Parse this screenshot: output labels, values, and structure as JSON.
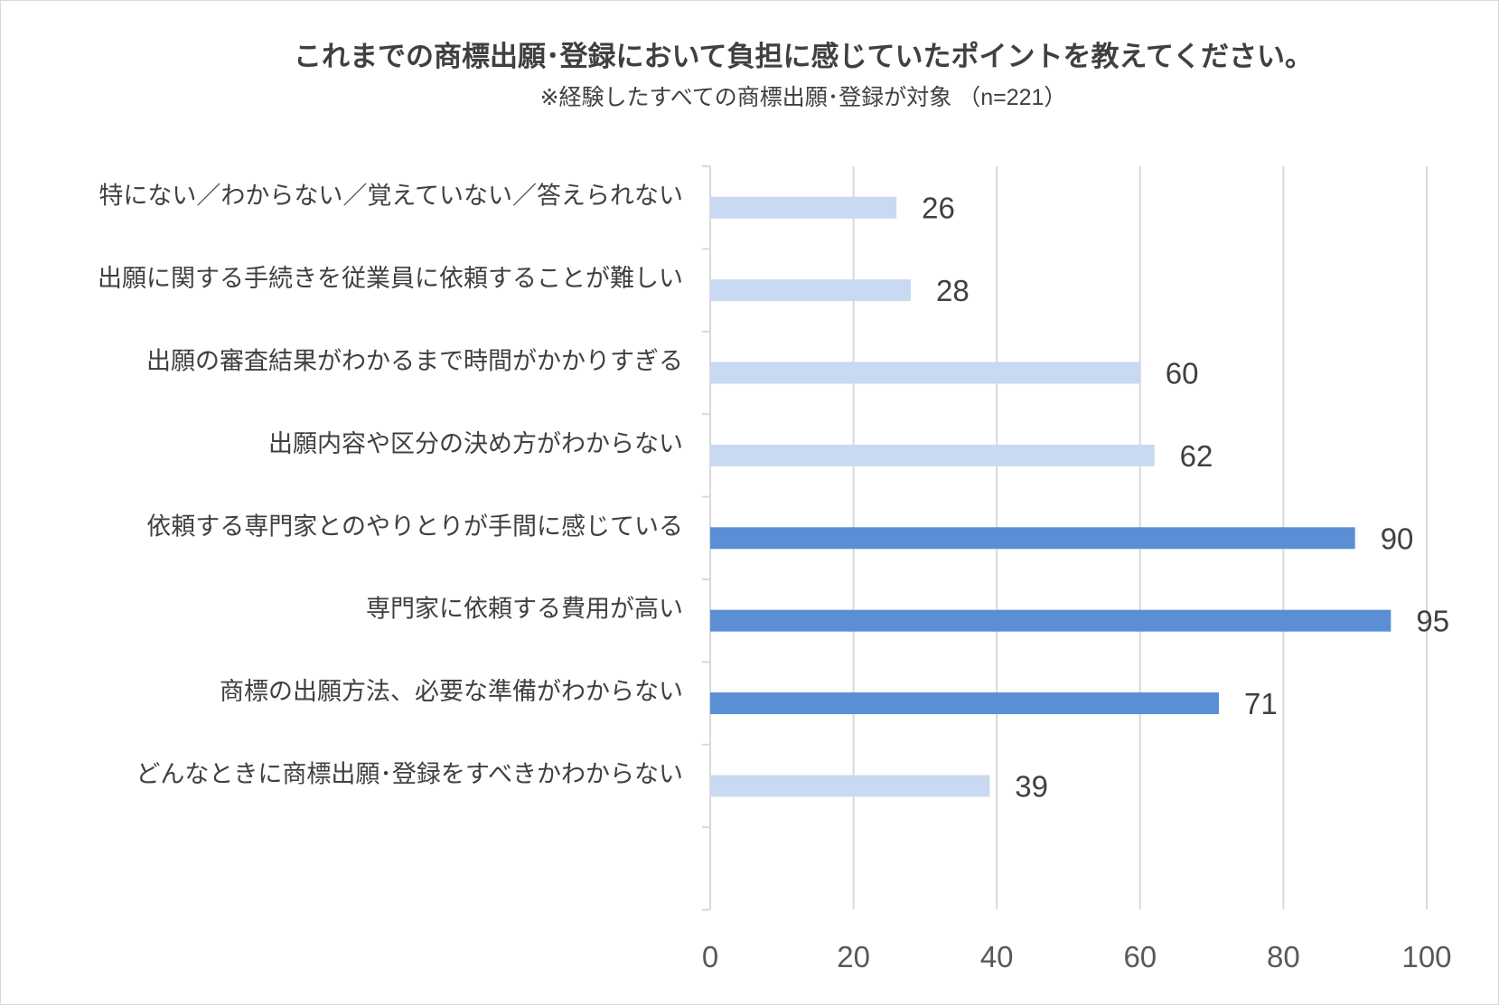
{
  "chart_data": {
    "type": "bar",
    "orientation": "horizontal",
    "title": "これまでの商標出願･登録において負担に感じていたポイントを教えてください。",
    "subtitle": "※経験したすべての商標出願･登録が対象 （n=221）",
    "categories": [
      "特にない／わからない／覚えていない／答えられない",
      "出願に関する手続きを従業員に依頼することが難しい",
      "出願の審査結果がわかるまで時間がかかりすぎる",
      "出願内容や区分の決め方がわからない",
      "依頼する専門家とのやりとりが手間に感じている",
      "専門家に依頼する費用が高い",
      "商標の出願方法、必要な準備がわからない",
      "どんなときに商標出願･登録をすべきかわからない"
    ],
    "values": [
      26,
      28,
      60,
      62,
      90,
      95,
      71,
      39
    ],
    "highlighted": [
      false,
      false,
      false,
      false,
      true,
      true,
      true,
      false
    ],
    "xlim": [
      0,
      100
    ],
    "xticks": [
      "0",
      "20",
      "40",
      "60",
      "80",
      "100"
    ],
    "grid": true,
    "colors": {
      "bar_light": "#c8d9f1",
      "bar_dark": "#5a8fd6",
      "grid": "#d9d9d9",
      "axis": "#d9d9d9",
      "text": "#404040"
    }
  }
}
